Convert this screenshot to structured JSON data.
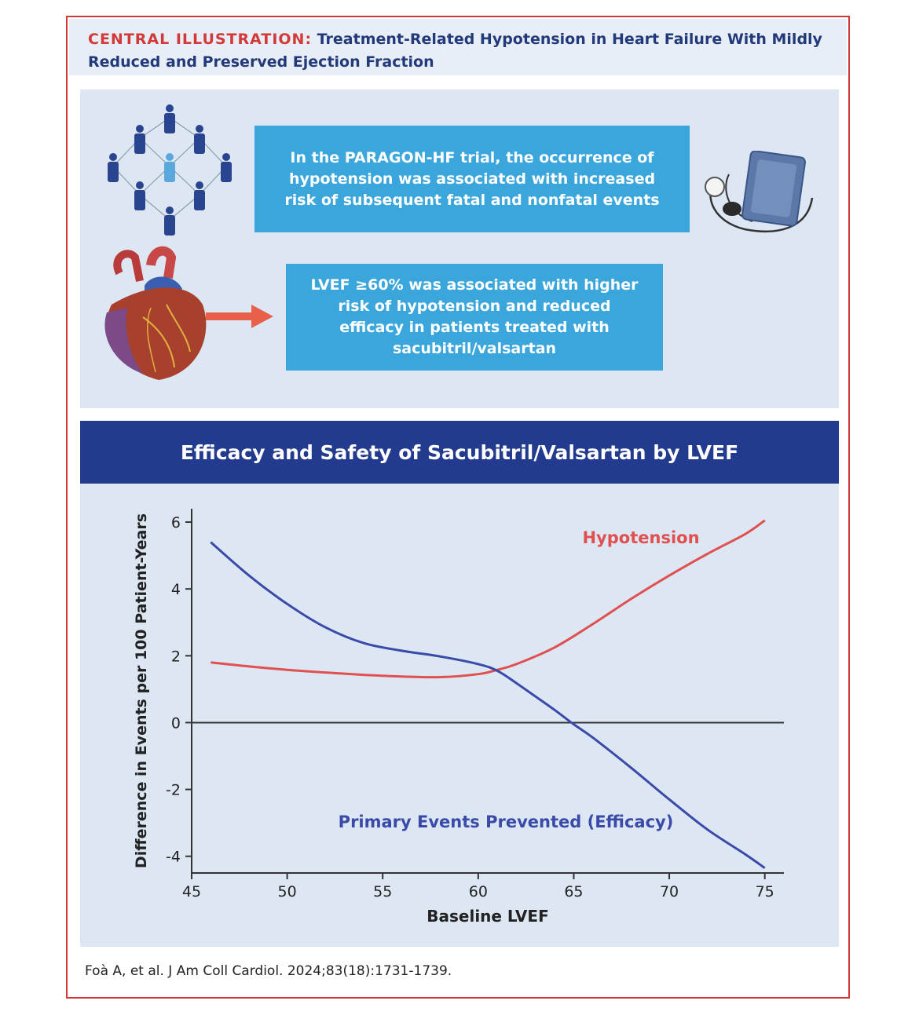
{
  "header": {
    "label": "CENTRAL ILLUSTRATION:",
    "title": " Treatment-Related Hypotension in Heart Failure With Mildly Reduced and Preserved Ejection Fraction"
  },
  "info_boxes": [
    {
      "text": "In the PARAGON-HF trial, the occurrence of hypotension was associated with increased risk of subsequent fatal and nonfatal events"
    },
    {
      "text": "LVEF ≥60% was associated with higher risk of hypotension and reduced efficacy in patients treated with sacubitril/valsartan"
    }
  ],
  "icons": {
    "people_network": "people-network-icon",
    "blood_pressure_cuff": "blood-pressure-cuff-icon",
    "heart": "heart-icon",
    "arrow": "arrow-right-icon"
  },
  "chart_banner": "Efficacy and Safety of Sacubitril/Valsartan by LVEF",
  "chart_data": {
    "type": "line",
    "title": "Efficacy and Safety of Sacubitril/Valsartan by LVEF",
    "xlabel": "Baseline LVEF",
    "ylabel": "Difference in Events per 100 Patient-Years",
    "xlim": [
      45,
      76
    ],
    "ylim": [
      -4.5,
      6.4
    ],
    "xticks": [
      45,
      50,
      55,
      60,
      65,
      70,
      75
    ],
    "yticks": [
      -4,
      -2,
      0,
      2,
      4,
      6
    ],
    "reference_line": 0,
    "grid": false,
    "series": [
      {
        "name": "Hypotension",
        "color": "#e05050",
        "x": [
          46,
          48,
          50,
          52,
          54,
          56,
          58,
          60,
          61,
          62,
          64,
          66,
          68,
          70,
          72,
          74,
          75
        ],
        "y": [
          1.8,
          1.68,
          1.58,
          1.5,
          1.43,
          1.38,
          1.36,
          1.45,
          1.58,
          1.75,
          2.25,
          2.95,
          3.7,
          4.4,
          5.05,
          5.65,
          6.05
        ]
      },
      {
        "name": "Primary Events Prevented (Efficacy)",
        "color": "#3a4aa8",
        "x": [
          46,
          48,
          50,
          52,
          54,
          56,
          58,
          60,
          61,
          62,
          63,
          64,
          65,
          66,
          68,
          70,
          72,
          74,
          75
        ],
        "y": [
          5.4,
          4.4,
          3.55,
          2.85,
          2.38,
          2.15,
          1.98,
          1.75,
          1.55,
          1.18,
          0.78,
          0.38,
          -0.05,
          -0.45,
          -1.35,
          -2.3,
          -3.2,
          -3.95,
          -4.35
        ]
      }
    ],
    "annotations": [
      "Hypotension",
      "Primary Events Prevented (Efficacy)"
    ]
  },
  "citation": "Foà A, et al. J Am Coll Cardiol. 2024;83(18):1731-1739."
}
